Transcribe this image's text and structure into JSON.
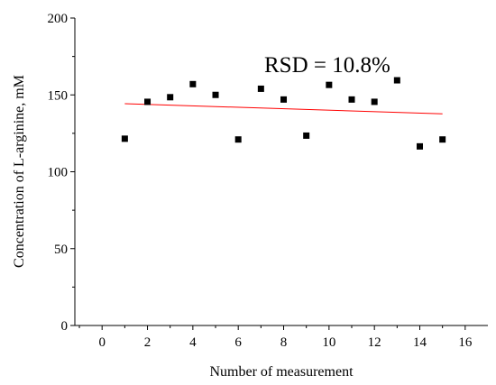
{
  "chart_data": {
    "type": "scatter",
    "xlabel": "Number of measurement",
    "ylabel": "Concentration of L-arginine, mM",
    "xlim": [
      -1.2,
      17
    ],
    "ylim": [
      0,
      200
    ],
    "xticks": [
      0,
      2,
      4,
      6,
      8,
      10,
      12,
      14,
      16
    ],
    "yticks": [
      0,
      50,
      100,
      150,
      200
    ],
    "grid": false,
    "legend": "none",
    "annotation": "RSD = 10.8%",
    "series": [
      {
        "marker": "square",
        "color": "#000000",
        "x": [
          1,
          2,
          3,
          4,
          5,
          6,
          7,
          8,
          9,
          10,
          11,
          12,
          13,
          14,
          15
        ],
        "y": [
          121.5,
          145.5,
          148.5,
          157,
          150,
          121,
          154,
          147,
          123.5,
          156.5,
          147,
          145.5,
          159.5,
          116.5,
          121
        ]
      }
    ],
    "trendline": {
      "color": "#ff0000",
      "x": [
        1,
        15
      ],
      "y": [
        144.3,
        137.7
      ]
    }
  }
}
